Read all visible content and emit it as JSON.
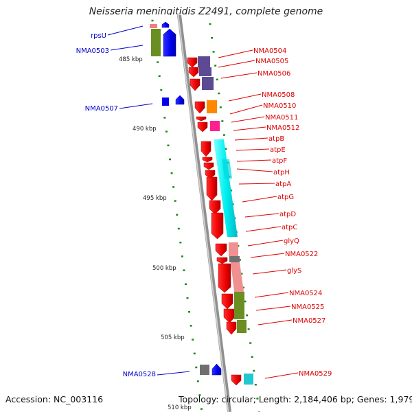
{
  "title": "Neisseria meningitidis Z2491, complete genome",
  "footer": {
    "accession": "Accession: NC_003116",
    "topology": "Topology: circular; Length: 2,184,406 bp; Genes: 1,979"
  },
  "colors": {
    "red_label": "#dd0000",
    "blue_label": "#0000cc",
    "tick_green": "#1a8a1a",
    "backbone": "#9a9a9a"
  },
  "ticks": [
    "485 kbp",
    "490 kbp",
    "495 kbp",
    "500 kbp",
    "505 kbp",
    "510 kbp"
  ],
  "labels_left": [
    "rpsU",
    "NMA0503",
    "NMA0507",
    "NMA0528"
  ],
  "labels_right": [
    "NMA0504",
    "NMA0505",
    "NMA0506",
    "NMA0508",
    "NMA0510",
    "NMA0511",
    "NMA0512",
    "atpB",
    "atpE",
    "atpF",
    "atpH",
    "atpA",
    "atpG",
    "atpD",
    "atpC",
    "glyQ",
    "NMA0522",
    "glyS",
    "NMA0524",
    "NMA0525",
    "NMA0527",
    "NMA0529"
  ]
}
